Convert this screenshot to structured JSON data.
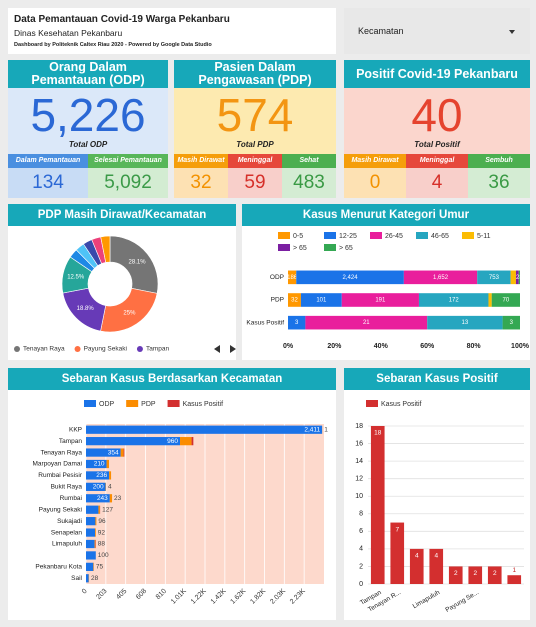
{
  "header": {
    "title": "Data Pemantauan Covid-19 Warga Pekanbaru",
    "subtitle": "Dinas Kesehatan Pekanbaru",
    "note": "Dashboard by Politeknik Caltex Riau 2020 - Powered by Google Data Studio"
  },
  "filter": {
    "label": "Kecamatan"
  },
  "cards": [
    {
      "title": "Orang Dalam Pemantauan (ODP)",
      "total": "5,226",
      "total_label": "Total ODP",
      "items": [
        {
          "label": "Dalam Pemantauan",
          "value": "134"
        },
        {
          "label": "Selesai Pemantauan",
          "value": "5,092"
        }
      ]
    },
    {
      "title": "Pasien Dalam Pengawasan (PDP)",
      "total": "574",
      "total_label": "Total PDP",
      "items": [
        {
          "label": "Masih Dirawat",
          "value": "32"
        },
        {
          "label": "Meninggal",
          "value": "59"
        },
        {
          "label": "Sehat",
          "value": "483"
        }
      ]
    },
    {
      "title": "Positif Covid-19 Pekanbaru",
      "total": "40",
      "total_label": "Total Positif",
      "items": [
        {
          "label": "Masih Dirawat",
          "value": "0"
        },
        {
          "label": "Meninggal",
          "value": "4"
        },
        {
          "label": "Sembuh",
          "value": "36"
        }
      ]
    }
  ],
  "chart_data": [
    {
      "type": "pie",
      "title": "PDP Masih Dirawat/Kecamatan",
      "donut": true,
      "categories": [
        "Tenayan Raya",
        "Payung Sekaki",
        "Tampan",
        null,
        null,
        null,
        null,
        null,
        null
      ],
      "values": [
        28.1,
        25,
        18.8,
        12.5,
        3.1,
        3.1,
        3.1,
        3.1,
        3.1
      ],
      "value_labels": [
        "28.1%",
        "25%",
        "18.8%",
        "12.5%",
        null,
        null,
        null,
        null,
        null
      ],
      "colors": [
        "#757575",
        "#ff7043",
        "#673ab7",
        "#26a69a",
        "#1e88e5",
        "#4fc3f7",
        "#3949ab",
        "#ec407a",
        "#ff9800"
      ]
    },
    {
      "type": "bar",
      "orientation": "horizontal",
      "stacked": "percent",
      "title": "Kasus Menurut Kategori Umur",
      "categories": [
        "ODP",
        "PDP",
        "Kasus Positif"
      ],
      "series": [
        {
          "name": "0-5",
          "color": "#ff9800",
          "values": [
            186,
            32,
            0
          ],
          "value_labels": [
            "186",
            "32",
            null
          ]
        },
        {
          "name": "12-25",
          "color": "#1a73e8",
          "values": [
            2424,
            101,
            3
          ],
          "value_labels": [
            "2,424",
            "101",
            "3"
          ]
        },
        {
          "name": "26-45",
          "color": "#e91e9c",
          "values": [
            1652,
            191,
            21
          ],
          "value_labels": [
            "1,652",
            "191",
            "21"
          ]
        },
        {
          "name": "46-65",
          "color": "#26a6c0",
          "values": [
            753,
            172,
            13
          ],
          "value_labels": [
            "753",
            "172",
            "13"
          ]
        },
        {
          "name": "5-11",
          "color": "#fbbc04",
          "values": [
            120,
            8,
            0
          ],
          "value_labels": [
            null,
            null,
            null
          ]
        },
        {
          "name": "> 65",
          "color": "#7b1fa2",
          "values": [
            63,
            0,
            0
          ],
          "value_labels": [
            null,
            null,
            null
          ]
        },
        {
          "name": "> 65",
          "color": "#34a853",
          "values": [
            28,
            70,
            3
          ],
          "value_labels": [
            "28",
            "70",
            "3"
          ]
        }
      ],
      "xlim": [
        0,
        100
      ],
      "xticks": [
        {
          "value": 0,
          "label": "0%"
        },
        {
          "value": 20,
          "label": "20%"
        },
        {
          "value": 40,
          "label": "40%"
        },
        {
          "value": 60,
          "label": "60%"
        },
        {
          "value": 80,
          "label": "80%"
        },
        {
          "value": 100,
          "label": "100%"
        }
      ],
      "grid": false
    },
    {
      "type": "bar",
      "orientation": "horizontal",
      "stacked": true,
      "title": "Sebaran Kasus Berdasarkan Kecamatan",
      "categories": [
        "KKP",
        "Tampan",
        "Tenayan Raya",
        "Marpoyan Damai",
        "Rumbai Pesisir",
        "Bukit Raya",
        "Rumbai",
        "Payung Sekaki",
        "Sukajadi",
        "Senapelan",
        "Limapuluh",
        null,
        "Pekanbaru Kota",
        "Sail"
      ],
      "series": [
        {
          "name": "ODP",
          "color": "#1a73e8",
          "values": [
            2411,
            960,
            354,
            210,
            236,
            200,
            243,
            127,
            96,
            92,
            88,
            100,
            75,
            28
          ],
          "value_labels": [
            "2,411",
            "960",
            "354",
            "210",
            "236",
            "200",
            "243",
            "127",
            "96",
            "92",
            "88",
            "100",
            "75",
            "28"
          ]
        },
        {
          "name": "PDP",
          "color": "#fb8c00",
          "values": [
            1,
            118,
            30,
            25,
            20,
            4,
            23,
            15,
            10,
            8,
            8,
            null,
            5,
            3
          ],
          "value_labels": [
            "1",
            null,
            null,
            null,
            null,
            "4",
            "23",
            null,
            null,
            null,
            null,
            null,
            null,
            null
          ]
        },
        {
          "name": "Kasus Positif",
          "color": "#d32f2f",
          "values": [
            null,
            18,
            7,
            null,
            null,
            null,
            null,
            2,
            null,
            null,
            4,
            null,
            null,
            null
          ],
          "labels": false
        }
      ],
      "xlim": [
        0,
        2430
      ],
      "xticks": [
        0,
        {
          "value": 202.5,
          "label": "203"
        },
        405,
        {
          "value": 607.5,
          "label": "608"
        },
        810,
        {
          "value": 1012.5,
          "label": "1.01K"
        },
        {
          "value": 1215,
          "label": "1.22K"
        },
        {
          "value": 1417.5,
          "label": "1.42K"
        },
        {
          "value": 1620,
          "label": "1.62K"
        },
        {
          "value": 1822.5,
          "label": "1.82K"
        },
        {
          "value": 2025,
          "label": "2.03K"
        },
        {
          "value": 2227.5,
          "label": "2.23K"
        }
      ],
      "grid": true,
      "plot_background": "#fdd9cc"
    },
    {
      "type": "bar",
      "orientation": "vertical",
      "title": "Sebaran Kasus Positif",
      "categories": [
        "Tampan",
        "Tenayan R...",
        null,
        "Limapuluh",
        null,
        "Payung Se...",
        null,
        null
      ],
      "series": [
        {
          "name": "Kasus Positif",
          "color": "#d32f2f",
          "values": [
            18,
            7,
            4,
            4,
            2,
            2,
            2,
            1
          ]
        }
      ],
      "ylim": [
        0,
        18
      ],
      "yticks": [
        0,
        2,
        4,
        6,
        8,
        10,
        12,
        14,
        16,
        18
      ],
      "grid": true
    }
  ]
}
